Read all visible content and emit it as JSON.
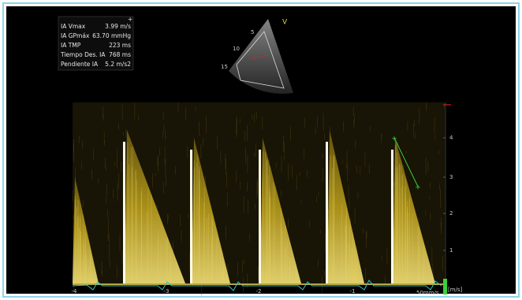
{
  "measurements": {
    "marker": "+",
    "rows": [
      [
        "IA Vmax",
        "3.99 m/s"
      ],
      [
        "IA GPmáx",
        "63.70 mmHg"
      ],
      [
        "IA TMP",
        "223 ms"
      ],
      [
        "Tiempo Des. IA",
        "768 ms"
      ],
      [
        "Pendiente IA",
        "5.2 m/s2"
      ]
    ]
  },
  "sector": {
    "depth_labels": [
      "5",
      "10",
      "15"
    ],
    "probe_label": "V"
  },
  "spectrum": {
    "velocity_labels": [
      "4",
      "3",
      "2",
      "1"
    ],
    "velocity_unit": "[m/s]",
    "time_labels": [
      "-4",
      "-3",
      "-2",
      "-1"
    ],
    "sweep_speed": "50mm/s"
  }
}
